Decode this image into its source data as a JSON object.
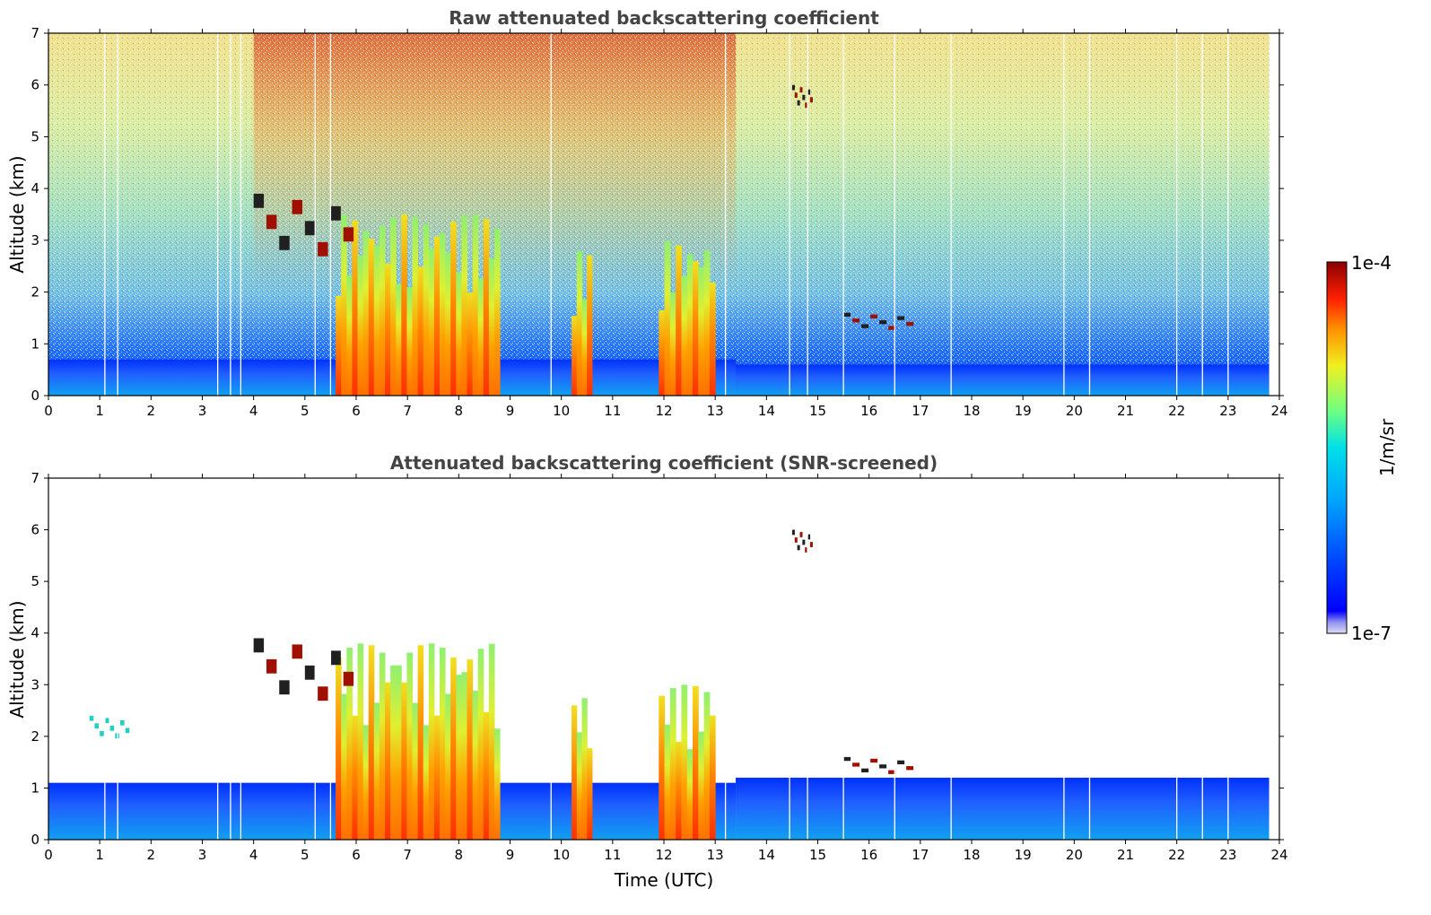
{
  "colors": {
    "colormap": [
      "#dcdcf5",
      "#0000ff",
      "#0048ff",
      "#00a0ff",
      "#00e0e8",
      "#70ff80",
      "#f0f020",
      "#ff9000",
      "#ff2000",
      "#8b0000"
    ],
    "background": "#ffffff"
  },
  "colorbar": {
    "label": "1/m/sr",
    "min_label": "1e-7",
    "max_label": "1e-4",
    "scale": "log",
    "range": [
      1e-07,
      0.0001
    ]
  },
  "chart_data": [
    {
      "type": "heatmap",
      "title": "Raw attenuated backscattering coefficient",
      "xlabel": "",
      "ylabel": "Altitude (km)",
      "xlim": [
        0,
        24
      ],
      "ylim": [
        0,
        7
      ],
      "xticks": [
        "0",
        "1",
        "2",
        "3",
        "4",
        "5",
        "6",
        "7",
        "8",
        "9",
        "10",
        "11",
        "12",
        "13",
        "14",
        "15",
        "16",
        "17",
        "18",
        "19",
        "20",
        "21",
        "22",
        "23",
        "24"
      ],
      "yticks": [
        "0",
        "1",
        "2",
        "3",
        "4",
        "5",
        "6",
        "7"
      ],
      "data_extent_hours": [
        0,
        23.8
      ],
      "grid": false,
      "gap_times_hours": [
        1.1,
        1.35,
        3.3,
        3.55,
        3.75,
        5.2,
        5.5,
        9.8,
        13.2,
        14.45,
        14.8,
        15.5,
        16.5,
        17.6,
        19.8,
        20.3,
        22.0,
        22.5,
        23.0
      ],
      "features": [
        {
          "kind": "boundary_layer",
          "t": [
            0,
            13.4
          ],
          "alt_km": [
            0,
            0.7
          ]
        },
        {
          "kind": "boundary_layer",
          "t": [
            13.4,
            23.8
          ],
          "alt_km": [
            0,
            0.6
          ]
        },
        {
          "kind": "precipitation_columns",
          "t": [
            5.6,
            8.8
          ],
          "alt_km": [
            0,
            3.5
          ]
        },
        {
          "kind": "precipitation_columns",
          "t": [
            10.2,
            10.6
          ],
          "alt_km": [
            0,
            2.8
          ]
        },
        {
          "kind": "precipitation_columns",
          "t": [
            11.9,
            13.0
          ],
          "alt_km": [
            0,
            3.0
          ]
        },
        {
          "kind": "cloud_layer",
          "t": [
            4.0,
            6.0
          ],
          "alt_km": [
            2.8,
            3.9
          ]
        },
        {
          "kind": "cloud_layer",
          "t": [
            15.5,
            16.9
          ],
          "alt_km": [
            1.3,
            1.6
          ]
        },
        {
          "kind": "cloud_layer",
          "t": [
            14.5,
            14.9
          ],
          "alt_km": [
            5.6,
            6.0
          ]
        }
      ]
    },
    {
      "type": "heatmap",
      "title": "Attenuated backscattering coefficient (SNR-screened)",
      "xlabel": "Time (UTC)",
      "ylabel": "Altitude (km)",
      "xlim": [
        0,
        24
      ],
      "ylim": [
        0,
        7
      ],
      "xticks": [
        "0",
        "1",
        "2",
        "3",
        "4",
        "5",
        "6",
        "7",
        "8",
        "9",
        "10",
        "11",
        "12",
        "13",
        "14",
        "15",
        "16",
        "17",
        "18",
        "19",
        "20",
        "21",
        "22",
        "23",
        "24"
      ],
      "yticks": [
        "0",
        "1",
        "2",
        "3",
        "4",
        "5",
        "6",
        "7"
      ],
      "data_extent_hours": [
        0,
        23.8
      ],
      "grid": false,
      "gap_times_hours": [
        1.1,
        1.35,
        3.3,
        3.55,
        3.75,
        5.2,
        5.5,
        9.8,
        13.2,
        14.45,
        14.8,
        15.5,
        16.5,
        17.6,
        19.8,
        20.3,
        22.0,
        22.5,
        23.0
      ],
      "features": [
        {
          "kind": "boundary_layer",
          "t": [
            0,
            13.4
          ],
          "alt_km": [
            0,
            1.1
          ]
        },
        {
          "kind": "boundary_layer",
          "t": [
            13.4,
            23.8
          ],
          "alt_km": [
            0,
            1.2
          ]
        },
        {
          "kind": "precipitation_columns",
          "t": [
            5.6,
            8.8
          ],
          "alt_km": [
            0,
            3.8
          ]
        },
        {
          "kind": "precipitation_columns",
          "t": [
            10.2,
            10.6
          ],
          "alt_km": [
            0,
            2.8
          ]
        },
        {
          "kind": "precipitation_columns",
          "t": [
            11.9,
            13.0
          ],
          "alt_km": [
            0,
            3.0
          ]
        },
        {
          "kind": "cloud_layer",
          "t": [
            4.0,
            6.0
          ],
          "alt_km": [
            2.8,
            3.9
          ]
        },
        {
          "kind": "cloud_layer",
          "t": [
            15.5,
            16.9
          ],
          "alt_km": [
            1.3,
            1.6
          ]
        },
        {
          "kind": "cloud_layer",
          "t": [
            14.5,
            14.9
          ],
          "alt_km": [
            5.6,
            6.0
          ]
        },
        {
          "kind": "cloud_fragments",
          "t": [
            0.8,
            1.6
          ],
          "alt_km": [
            2.0,
            2.4
          ]
        }
      ]
    }
  ]
}
